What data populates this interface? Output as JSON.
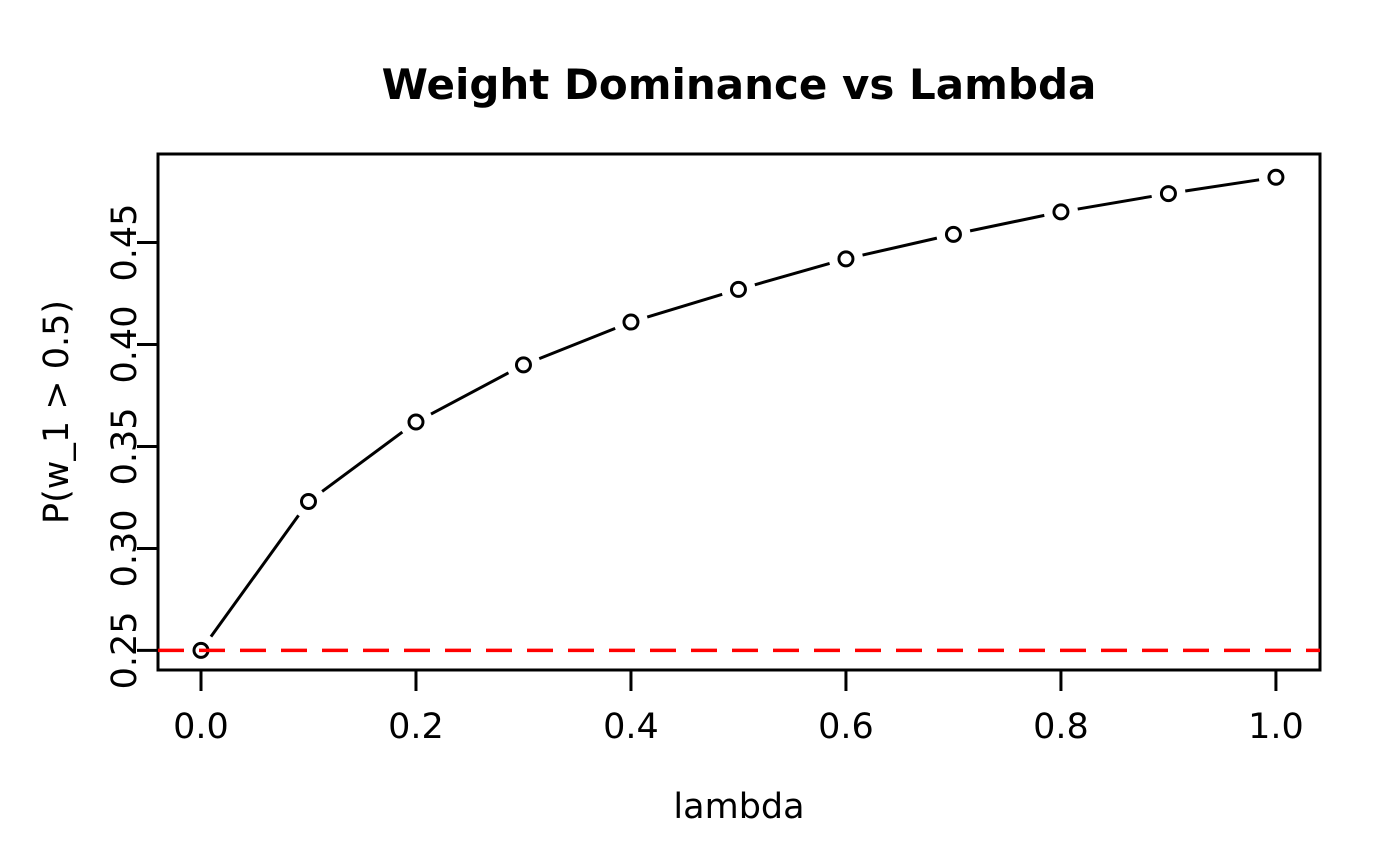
{
  "figure": {
    "background": "#FFFFFF"
  },
  "chart_data": {
    "type": "line",
    "title": "Weight Dominance vs Lambda",
    "xlabel": "lambda",
    "ylabel": "P(w_1 > 0.5)",
    "x": [
      0.0,
      0.1,
      0.2,
      0.3,
      0.4,
      0.5,
      0.6,
      0.7,
      0.8,
      0.9,
      1.0
    ],
    "series": [
      {
        "name": "P(w_1 > 0.5)",
        "values": [
          0.25,
          0.323,
          0.362,
          0.39,
          0.411,
          0.427,
          0.442,
          0.454,
          0.465,
          0.474,
          0.482
        ],
        "color": "#000000",
        "marker": "open-circle",
        "line_style": "solid",
        "plot_type": "points-and-lines"
      }
    ],
    "reference_line": {
      "value": 0.25,
      "orientation": "horizontal",
      "color": "#FF0000",
      "style": "dashed"
    },
    "axes": {
      "x_ticks": [
        0.0,
        0.2,
        0.4,
        0.6,
        0.8,
        1.0
      ],
      "x_tick_labels": [
        "0.0",
        "0.2",
        "0.4",
        "0.6",
        "0.8",
        "1.0"
      ],
      "y_ticks": [
        0.25,
        0.3,
        0.35,
        0.4,
        0.45
      ],
      "y_tick_labels": [
        "0.25",
        "0.30",
        "0.35",
        "0.40",
        "0.45"
      ],
      "xlim": [
        -0.04,
        1.041
      ],
      "ylim": [
        0.2404,
        0.4934
      ],
      "frame_color": "#000000",
      "grid": false
    },
    "legend": null
  }
}
